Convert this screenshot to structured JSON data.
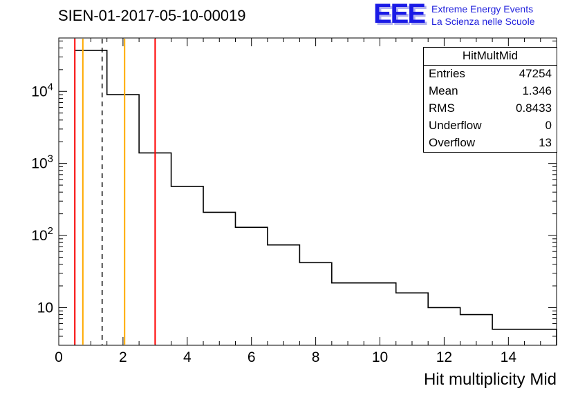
{
  "title": "SIEN-01-2017-05-10-00019",
  "logo": {
    "acronym": "EEE",
    "line1": "Extreme Energy Events",
    "line2": "La Scienza nelle Scuole",
    "color": "#2222dd"
  },
  "stats": {
    "title": "HitMultMid",
    "rows": [
      {
        "label": "Entries",
        "value": "47254"
      },
      {
        "label": "Mean",
        "value": "1.346"
      },
      {
        "label": "RMS",
        "value": "0.8433"
      },
      {
        "label": "Underflow",
        "value": "0"
      },
      {
        "label": "Overflow",
        "value": "13"
      }
    ]
  },
  "xlabel": "Hit multiplicity Mid",
  "chart_data": {
    "type": "histogram-step",
    "title": "SIEN-01-2017-05-10-00019",
    "xlabel": "Hit multiplicity Mid",
    "ylabel": "",
    "ylog": true,
    "xlim": [
      0,
      15.5
    ],
    "ylim": [
      3,
      55000
    ],
    "bin_edges": [
      0.5,
      1.5,
      2.5,
      3.5,
      4.5,
      5.5,
      6.5,
      7.5,
      8.5,
      9.5,
      10.5,
      11.5,
      12.5,
      13.5,
      14.5,
      15.5
    ],
    "values": [
      37000,
      9000,
      1400,
      480,
      210,
      130,
      74,
      42,
      22,
      22,
      16,
      10,
      8,
      5,
      5
    ],
    "line_color": "#000000",
    "x_tick_labels": [
      "0",
      "2",
      "4",
      "6",
      "8",
      "10",
      "12",
      "14"
    ],
    "x_major_ticks": [
      0,
      2,
      4,
      6,
      8,
      10,
      12,
      14
    ],
    "y_major_ticks": [
      10,
      100,
      1000,
      10000
    ],
    "marker_lines": [
      {
        "x": 0.5,
        "color": "#ff0000",
        "style": "solid"
      },
      {
        "x": 0.75,
        "color": "#ffaa00",
        "style": "solid"
      },
      {
        "x": 1.35,
        "color": "#000000",
        "style": "dashed"
      },
      {
        "x": 2.05,
        "color": "#ffaa00",
        "style": "solid"
      },
      {
        "x": 3.0,
        "color": "#ff0000",
        "style": "solid"
      }
    ]
  }
}
